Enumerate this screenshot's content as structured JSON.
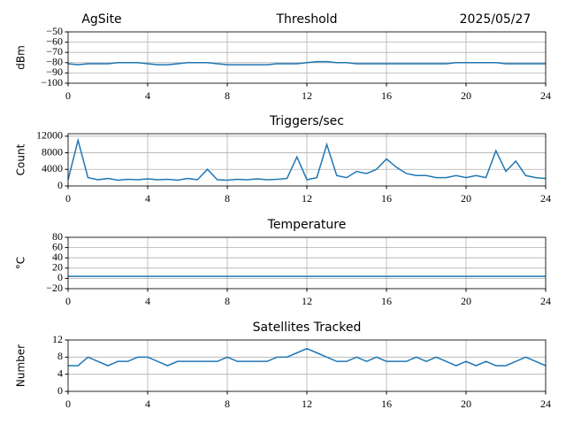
{
  "chart_data": [
    {
      "type": "line",
      "title": "Threshold",
      "location": "AgSite",
      "date": "2025/05/27",
      "ylabel": "dBm",
      "color": "#1f77b4",
      "grid": true,
      "x": [
        0,
        0.5,
        1,
        1.5,
        2,
        2.5,
        3,
        3.5,
        4,
        4.5,
        5,
        5.5,
        6,
        6.5,
        7,
        7.5,
        8,
        8.5,
        9,
        9.5,
        10,
        10.5,
        11,
        11.5,
        12,
        12.5,
        13,
        13.5,
        14,
        14.5,
        15,
        15.5,
        16,
        16.5,
        17,
        17.5,
        18,
        18.5,
        19,
        19.5,
        20,
        20.5,
        21,
        21.5,
        22,
        22.5,
        23,
        23.5,
        24
      ],
      "values": [
        -81,
        -82,
        -81,
        -81,
        -81,
        -80,
        -80,
        -80,
        -81,
        -82,
        -82,
        -81,
        -80,
        -80,
        -80,
        -81,
        -82,
        -82,
        -82,
        -82,
        -82,
        -81,
        -81,
        -81,
        -80,
        -79,
        -79,
        -80,
        -80,
        -81,
        -81,
        -81,
        -81,
        -81,
        -81,
        -81,
        -81,
        -81,
        -81,
        -80,
        -80,
        -80,
        -80,
        -80,
        -81,
        -81,
        -81,
        -81,
        -81
      ],
      "xlim": [
        0,
        24
      ],
      "xticks": [
        0,
        4,
        8,
        12,
        16,
        20,
        24
      ],
      "ylim": [
        -100,
        -50
      ],
      "yticks": [
        {
          "value": -100,
          "label": "−100"
        },
        {
          "value": -90,
          "label": "−90"
        },
        {
          "value": -80,
          "label": "−80"
        },
        {
          "value": -70,
          "label": "−70"
        },
        {
          "value": -60,
          "label": "−60"
        },
        {
          "value": -50,
          "label": "−50"
        }
      ]
    },
    {
      "type": "line",
      "title": "Triggers/sec",
      "ylabel": "Count",
      "color": "#1f77b4",
      "grid": true,
      "x": [
        0,
        0.5,
        1,
        1.5,
        2,
        2.5,
        3,
        3.5,
        4,
        4.5,
        5,
        5.5,
        6,
        6.5,
        7,
        7.5,
        8,
        8.5,
        9,
        9.5,
        10,
        10.5,
        11,
        11.5,
        12,
        12.5,
        13,
        13.5,
        14,
        14.5,
        15,
        15.5,
        16,
        16.5,
        17,
        17.5,
        18,
        18.5,
        19,
        19.5,
        20,
        20.5,
        21,
        21.5,
        22,
        22.5,
        23,
        23.5,
        24
      ],
      "values": [
        1500,
        11000,
        2000,
        1500,
        1800,
        1400,
        1600,
        1500,
        1700,
        1500,
        1600,
        1400,
        1800,
        1500,
        4000,
        1500,
        1400,
        1600,
        1500,
        1700,
        1500,
        1600,
        1800,
        7000,
        1500,
        2000,
        10000,
        2500,
        2000,
        3500,
        3000,
        4000,
        6500,
        4500,
        3000,
        2500,
        2500,
        2000,
        2000,
        2500,
        2000,
        2500,
        2000,
        8500,
        3500,
        6000,
        2500,
        2000,
        1800
      ],
      "xlim": [
        0,
        24
      ],
      "xticks": [
        0,
        4,
        8,
        12,
        16,
        20,
        24
      ],
      "ylim": [
        0,
        12600
      ],
      "yticks": [
        0,
        4000,
        8000,
        12000
      ]
    },
    {
      "type": "line",
      "title": "Temperature",
      "ylabel": "°C",
      "color": "#1f77b4",
      "grid": true,
      "x": [
        0,
        24
      ],
      "values": [
        4,
        4
      ],
      "xlim": [
        0,
        24
      ],
      "xticks": [
        0,
        4,
        8,
        12,
        16,
        20,
        24
      ],
      "ylim": [
        -20,
        80
      ],
      "yticks": [
        {
          "value": -20,
          "label": "−20"
        },
        0,
        20,
        40,
        60,
        80
      ]
    },
    {
      "type": "line",
      "title": "Satellites Tracked",
      "ylabel": "Number",
      "color": "#1f77b4",
      "grid": true,
      "x": [
        0,
        0.5,
        1,
        1.5,
        2,
        2.5,
        3,
        3.5,
        4,
        4.5,
        5,
        5.5,
        6,
        6.5,
        7,
        7.5,
        8,
        8.5,
        9,
        9.5,
        10,
        10.5,
        11,
        11.5,
        12,
        12.5,
        13,
        13.5,
        14,
        14.5,
        15,
        15.5,
        16,
        16.5,
        17,
        17.5,
        18,
        18.5,
        19,
        19.5,
        20,
        20.5,
        21,
        21.5,
        22,
        22.5,
        23,
        23.5,
        24
      ],
      "values": [
        6,
        6,
        8,
        7,
        6,
        7,
        7,
        8,
        8,
        7,
        6,
        7,
        7,
        7,
        7,
        7,
        8,
        7,
        7,
        7,
        7,
        8,
        8,
        9,
        10,
        9,
        8,
        7,
        7,
        8,
        7,
        8,
        7,
        7,
        7,
        8,
        7,
        8,
        7,
        6,
        7,
        6,
        7,
        6,
        6,
        7,
        8,
        7,
        6
      ],
      "xlim": [
        0,
        24
      ],
      "xticks": [
        0,
        4,
        8,
        12,
        16,
        20,
        24
      ],
      "ylim": [
        0,
        12
      ],
      "yticks": [
        0,
        4,
        8,
        12
      ]
    }
  ]
}
